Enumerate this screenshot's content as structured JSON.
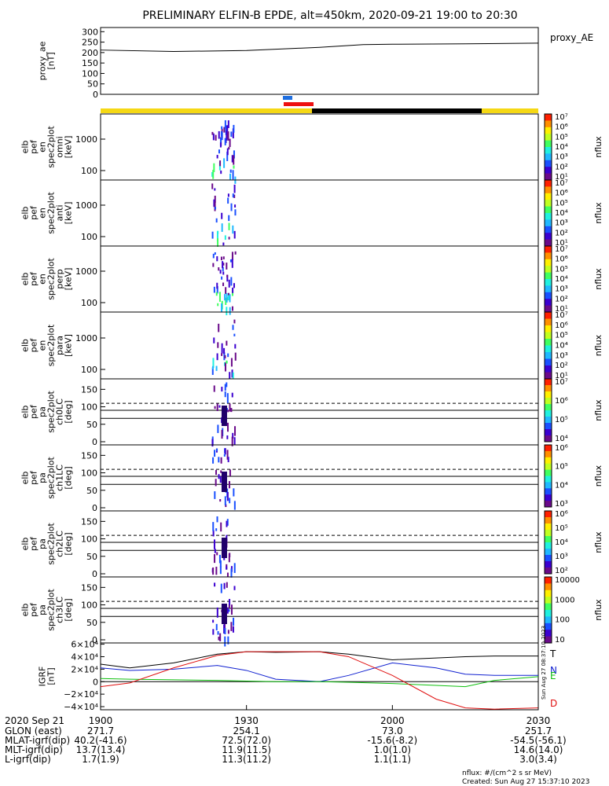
{
  "title": "PRELIMINARY ELFIN-B EPDE, alt=450km, 2020-09-21 19:00 to 20:30",
  "colors": {
    "bar_yellow": "#f5d814",
    "bar_black": "#000000",
    "bar_blue": "#1f6fe0",
    "bar_red": "#ee1111",
    "line_black": "#000000",
    "line_red": "#e01010",
    "line_blue": "#1020d0",
    "line_green": "#10c010"
  },
  "chart_data": [
    {
      "type": "line",
      "id": "proxy_ae",
      "ylabel": [
        "proxy_ae",
        "[nT]"
      ],
      "legend": "proxy_AE",
      "yticks": [
        "0",
        "50",
        "100",
        "150",
        "200",
        "250",
        "300"
      ],
      "ylim": [
        0,
        320
      ],
      "x_hours": [
        19.0,
        19.25,
        19.5,
        19.75,
        19.9,
        20.0,
        20.25,
        20.5
      ],
      "values": [
        212,
        205,
        210,
        225,
        238,
        240,
        242,
        245
      ]
    },
    {
      "type": "heatmap",
      "id": "omni",
      "ylabel": [
        "elb",
        "pef",
        "en",
        "spec2plot",
        "omni",
        "[keV]"
      ],
      "yticks": [
        "100",
        "1000"
      ],
      "cbar_unit": "nflux",
      "cbar_labels": [
        "10⁷",
        "10⁶",
        "10⁵",
        "10⁴",
        "10³",
        "10²",
        "10¹"
      ]
    },
    {
      "type": "heatmap",
      "id": "anti",
      "ylabel": [
        "elb",
        "pef",
        "en",
        "spec2plot",
        "anti",
        "[keV]"
      ],
      "yticks": [
        "100",
        "1000"
      ],
      "cbar_unit": "nflux",
      "cbar_labels": [
        "10⁷",
        "10⁶",
        "10⁵",
        "10⁴",
        "10³",
        "10²",
        "10¹"
      ]
    },
    {
      "type": "heatmap",
      "id": "perp",
      "ylabel": [
        "elb",
        "pef",
        "en",
        "spec2plot",
        "perp",
        "[keV]"
      ],
      "yticks": [
        "100",
        "1000"
      ],
      "cbar_unit": "nflux",
      "cbar_labels": [
        "10⁷",
        "10⁶",
        "10⁵",
        "10⁴",
        "10³",
        "10²",
        "10¹"
      ]
    },
    {
      "type": "heatmap",
      "id": "para",
      "ylabel": [
        "elb",
        "pef",
        "en",
        "spec2plot",
        "para",
        "[keV]"
      ],
      "yticks": [
        "100",
        "1000"
      ],
      "cbar_unit": "nflux",
      "cbar_labels": [
        "10⁷",
        "10⁶",
        "10⁵",
        "10⁴",
        "10³",
        "10²",
        "10¹"
      ]
    },
    {
      "type": "heatmap",
      "id": "ch0LC",
      "ylabel": [
        "elb",
        "pef",
        "pa",
        "spec2plot",
        "ch0LC",
        "[deg]"
      ],
      "yticks": [
        "0",
        "50",
        "100",
        "150"
      ],
      "cbar_unit": "nflux",
      "cbar_labels": [
        "10⁷",
        "10⁶",
        "10⁵",
        "10⁴"
      ]
    },
    {
      "type": "heatmap",
      "id": "ch1LC",
      "ylabel": [
        "elb",
        "pef",
        "pa",
        "spec2plot",
        "ch1LC",
        "[deg]"
      ],
      "yticks": [
        "0",
        "50",
        "100",
        "150"
      ],
      "cbar_unit": "nflux",
      "cbar_labels": [
        "10⁶",
        "10⁵",
        "10⁴",
        "10³"
      ]
    },
    {
      "type": "heatmap",
      "id": "ch2LC",
      "ylabel": [
        "elb",
        "pef",
        "pa",
        "spec2plot",
        "ch2LC",
        "[deg]"
      ],
      "yticks": [
        "0",
        "50",
        "100",
        "150"
      ],
      "cbar_unit": "nflux",
      "cbar_labels": [
        "10⁶",
        "10⁵",
        "10⁴",
        "10³",
        "10²"
      ]
    },
    {
      "type": "heatmap",
      "id": "ch3LC",
      "ylabel": [
        "elb",
        "pef",
        "pa",
        "spec2plot",
        "ch3LC",
        "[deg]"
      ],
      "yticks": [
        "0",
        "50",
        "100",
        "150"
      ],
      "cbar_unit": "nflux",
      "cbar_labels": [
        "10000",
        "1000",
        "100",
        "10"
      ]
    },
    {
      "type": "line",
      "id": "igrf",
      "ylabel": [
        "IGRF",
        "[nT]"
      ],
      "yticks": [
        "−4×10⁴",
        "−2×10⁴",
        "0",
        "2×10⁴",
        "4×10⁴",
        "6×10⁴"
      ],
      "ylim": [
        -45000,
        62000
      ],
      "x_hours": [
        19.0,
        19.1,
        19.25,
        19.4,
        19.5,
        19.6,
        19.75,
        19.85,
        20.0,
        20.15,
        20.25,
        20.35,
        20.5
      ],
      "series": [
        {
          "name": "T",
          "values": [
            28000,
            22000,
            30000,
            44000,
            48000,
            47000,
            48000,
            44000,
            35000,
            38000,
            40000,
            41000,
            41000
          ]
        },
        {
          "name": "N",
          "values": [
            22000,
            18000,
            20000,
            26000,
            18000,
            4000,
            0,
            10000,
            30000,
            22000,
            12000,
            10000,
            10000
          ]
        },
        {
          "name": "E",
          "values": [
            5000,
            4000,
            3000,
            2000,
            1000,
            0,
            0,
            -1000,
            -3000,
            -6000,
            -8000,
            2000,
            8000
          ]
        },
        {
          "name": "D",
          "values": [
            -8000,
            -2000,
            22000,
            42000,
            48000,
            48000,
            48000,
            40000,
            10000,
            -28000,
            -42000,
            -44000,
            -42000
          ]
        }
      ]
    }
  ],
  "xaxis": {
    "date": "2020 Sep 21",
    "ticks": [
      "1900",
      "1930",
      "2000",
      "2030"
    ],
    "tick_hours": [
      19.0,
      19.5,
      20.0,
      20.5
    ],
    "rows": [
      {
        "label": "GLON (east)",
        "values": [
          "271.7",
          "254.1",
          "73.0",
          "251.7"
        ]
      },
      {
        "label": "MLAT-igrf(dip)",
        "values": [
          "40.2(-41.6)",
          "72.5(72.0)",
          "-15.6(-8.2)",
          "-54.5(-56.1)"
        ]
      },
      {
        "label": "MLT-igrf(dip)",
        "values": [
          "13.7(13.4)",
          "11.9(11.5)",
          "1.0(1.0)",
          "14.6(14.0)"
        ]
      },
      {
        "label": "L-igrf(dip)",
        "values": [
          "1.7(1.9)",
          "11.3(11.2)",
          "1.1(1.1)",
          "3.0(3.4)"
        ]
      }
    ]
  },
  "footer": {
    "units": "nflux: #/(cm^2 s sr MeV)",
    "created": "Created: Sun Aug 27 15:37:10 2023",
    "side_stamp": "Sun Aug 27 08:37:10 2023"
  }
}
